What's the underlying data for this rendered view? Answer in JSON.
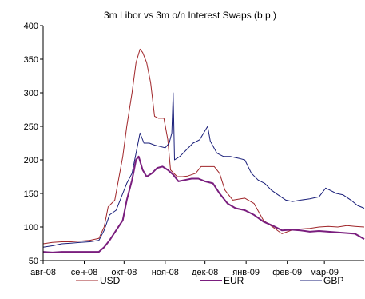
{
  "chart_data": {
    "type": "line",
    "title": "3m Libor vs 3m o/n Interest Swaps (b.p.)",
    "xlabel": "",
    "ylabel": "",
    "ylim": [
      50,
      400
    ],
    "yticks": [
      50,
      100,
      150,
      200,
      250,
      300,
      350,
      400
    ],
    "x_range": [
      "2008-08-01",
      "2009-03-31"
    ],
    "x_tick_dates": [
      "2008-08-01",
      "2008-09-01",
      "2008-10-01",
      "2008-11-01",
      "2008-12-01",
      "2009-01-01",
      "2009-02-01",
      "2009-03-01"
    ],
    "x_tick_labels": [
      "авг-08",
      "сен-08",
      "окт-08",
      "ноя-08",
      "дек-08",
      "янв-09",
      "фев-09",
      "мар-09"
    ],
    "legend_position": "bottom",
    "grid": false,
    "series": [
      {
        "name": "USD",
        "color": "#A0262A",
        "points": [
          [
            "2008-08-01",
            75
          ],
          [
            "2008-08-08",
            77
          ],
          [
            "2008-08-15",
            78
          ],
          [
            "2008-08-22",
            78
          ],
          [
            "2008-08-29",
            79
          ],
          [
            "2008-09-05",
            80
          ],
          [
            "2008-09-12",
            83
          ],
          [
            "2008-09-16",
            100
          ],
          [
            "2008-09-19",
            130
          ],
          [
            "2008-09-24",
            140
          ],
          [
            "2008-09-30",
            205
          ],
          [
            "2008-10-03",
            250
          ],
          [
            "2008-10-07",
            300
          ],
          [
            "2008-10-10",
            345
          ],
          [
            "2008-10-13",
            365
          ],
          [
            "2008-10-15",
            360
          ],
          [
            "2008-10-18",
            345
          ],
          [
            "2008-10-21",
            315
          ],
          [
            "2008-10-24",
            265
          ],
          [
            "2008-10-27",
            262
          ],
          [
            "2008-10-31",
            262
          ],
          [
            "2008-11-03",
            230
          ],
          [
            "2008-11-05",
            185
          ],
          [
            "2008-11-10",
            175
          ],
          [
            "2008-11-14",
            175
          ],
          [
            "2008-11-18",
            176
          ],
          [
            "2008-11-24",
            180
          ],
          [
            "2008-11-28",
            190
          ],
          [
            "2008-12-03",
            190
          ],
          [
            "2008-12-08",
            190
          ],
          [
            "2008-12-12",
            180
          ],
          [
            "2008-12-16",
            155
          ],
          [
            "2008-12-22",
            140
          ],
          [
            "2008-12-31",
            143
          ],
          [
            "2009-01-07",
            135
          ],
          [
            "2009-01-14",
            110
          ],
          [
            "2009-01-21",
            100
          ],
          [
            "2009-01-28",
            90
          ],
          [
            "2009-02-04",
            95
          ],
          [
            "2009-02-11",
            97
          ],
          [
            "2009-02-18",
            98
          ],
          [
            "2009-02-25",
            100
          ],
          [
            "2009-03-04",
            101
          ],
          [
            "2009-03-11",
            100
          ],
          [
            "2009-03-18",
            102
          ],
          [
            "2009-03-24",
            101
          ],
          [
            "2009-03-31",
            100
          ]
        ]
      },
      {
        "name": "EUR",
        "color": "#7A1E7E",
        "points": [
          [
            "2008-08-01",
            63
          ],
          [
            "2008-08-08",
            62
          ],
          [
            "2008-08-15",
            63
          ],
          [
            "2008-08-22",
            63
          ],
          [
            "2008-08-29",
            63
          ],
          [
            "2008-09-05",
            63
          ],
          [
            "2008-09-12",
            63
          ],
          [
            "2008-09-16",
            70
          ],
          [
            "2008-09-20",
            80
          ],
          [
            "2008-09-25",
            95
          ],
          [
            "2008-09-30",
            110
          ],
          [
            "2008-10-03",
            140
          ],
          [
            "2008-10-07",
            170
          ],
          [
            "2008-10-10",
            200
          ],
          [
            "2008-10-12",
            205
          ],
          [
            "2008-10-15",
            185
          ],
          [
            "2008-10-18",
            175
          ],
          [
            "2008-10-22",
            180
          ],
          [
            "2008-10-26",
            188
          ],
          [
            "2008-10-30",
            190
          ],
          [
            "2008-11-03",
            185
          ],
          [
            "2008-11-07",
            178
          ],
          [
            "2008-11-11",
            168
          ],
          [
            "2008-11-16",
            170
          ],
          [
            "2008-11-21",
            172
          ],
          [
            "2008-11-26",
            172
          ],
          [
            "2008-12-01",
            168
          ],
          [
            "2008-12-07",
            165
          ],
          [
            "2008-12-12",
            150
          ],
          [
            "2008-12-18",
            135
          ],
          [
            "2008-12-24",
            128
          ],
          [
            "2008-12-31",
            125
          ],
          [
            "2009-01-07",
            118
          ],
          [
            "2009-01-14",
            108
          ],
          [
            "2009-01-21",
            102
          ],
          [
            "2009-01-28",
            95
          ],
          [
            "2009-02-04",
            96
          ],
          [
            "2009-02-11",
            95
          ],
          [
            "2009-02-18",
            93
          ],
          [
            "2009-02-25",
            94
          ],
          [
            "2009-03-04",
            93
          ],
          [
            "2009-03-11",
            92
          ],
          [
            "2009-03-18",
            91
          ],
          [
            "2009-03-24",
            90
          ],
          [
            "2009-03-31",
            82
          ]
        ]
      },
      {
        "name": "GBP",
        "color": "#1A1F7A",
        "points": [
          [
            "2008-08-01",
            70
          ],
          [
            "2008-08-08",
            72
          ],
          [
            "2008-08-15",
            75
          ],
          [
            "2008-08-22",
            76
          ],
          [
            "2008-08-29",
            77
          ],
          [
            "2008-09-05",
            78
          ],
          [
            "2008-09-12",
            80
          ],
          [
            "2008-09-16",
            95
          ],
          [
            "2008-09-20",
            118
          ],
          [
            "2008-09-25",
            125
          ],
          [
            "2008-09-30",
            150
          ],
          [
            "2008-10-03",
            165
          ],
          [
            "2008-10-07",
            180
          ],
          [
            "2008-10-10",
            210
          ],
          [
            "2008-10-13",
            240
          ],
          [
            "2008-10-16",
            225
          ],
          [
            "2008-10-20",
            225
          ],
          [
            "2008-10-24",
            222
          ],
          [
            "2008-10-28",
            220
          ],
          [
            "2008-11-01",
            218
          ],
          [
            "2008-11-04",
            225
          ],
          [
            "2008-11-06",
            240
          ],
          [
            "2008-11-07",
            300
          ],
          [
            "2008-11-08",
            200
          ],
          [
            "2008-11-12",
            205
          ],
          [
            "2008-11-17",
            215
          ],
          [
            "2008-11-22",
            225
          ],
          [
            "2008-11-27",
            230
          ],
          [
            "2008-11-30",
            240
          ],
          [
            "2008-12-03",
            250
          ],
          [
            "2008-12-05",
            228
          ],
          [
            "2008-12-10",
            210
          ],
          [
            "2008-12-15",
            205
          ],
          [
            "2008-12-20",
            205
          ],
          [
            "2008-12-27",
            202
          ],
          [
            "2008-12-31",
            200
          ],
          [
            "2009-01-05",
            180
          ],
          [
            "2009-01-10",
            170
          ],
          [
            "2009-01-15",
            165
          ],
          [
            "2009-01-20",
            155
          ],
          [
            "2009-01-25",
            148
          ],
          [
            "2009-01-31",
            140
          ],
          [
            "2009-02-05",
            138
          ],
          [
            "2009-02-11",
            140
          ],
          [
            "2009-02-18",
            142
          ],
          [
            "2009-02-25",
            145
          ],
          [
            "2009-03-02",
            158
          ],
          [
            "2009-03-05",
            155
          ],
          [
            "2009-03-10",
            150
          ],
          [
            "2009-03-15",
            148
          ],
          [
            "2009-03-21",
            140
          ],
          [
            "2009-03-26",
            132
          ],
          [
            "2009-03-31",
            128
          ]
        ]
      }
    ]
  }
}
